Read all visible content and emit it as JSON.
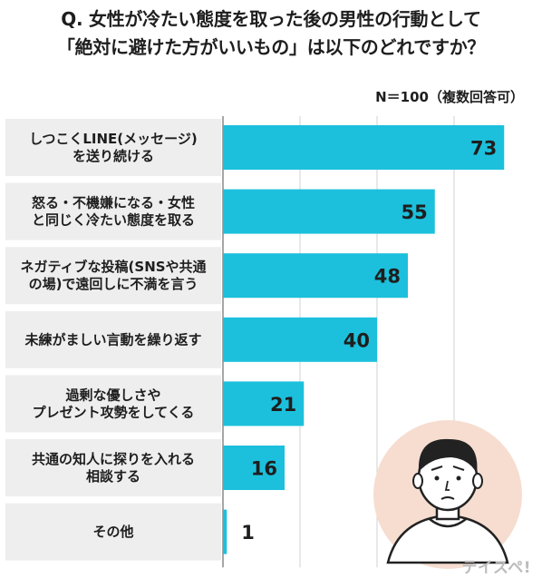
{
  "title_lines": [
    "Q. 女性が冷たい態度を取った後の男性の行動として",
    "「絶対に避けた方がいいもの」は以下のどれですか？"
  ],
  "note": "N＝100（複数回答可）",
  "watermark": "テイスペ!",
  "colors": {
    "bar": "#1cc0dc",
    "label_bg": "#eeeeee",
    "grid": "#d0d0d0"
  },
  "chart_data": {
    "type": "bar",
    "orientation": "horizontal",
    "categories": [
      [
        "しつこくLINE(メッセージ)",
        "を送り続ける"
      ],
      [
        "怒る・不機嫌になる・女性",
        "と同じく冷たい態度を取る"
      ],
      [
        "ネガティブな投稿(SNSや共通",
        "の場)で遠回しに不満を言う"
      ],
      [
        "未練がましい言動を繰り返す"
      ],
      [
        "過剰な優しさや",
        "プレゼント攻勢をしてくる"
      ],
      [
        "共通の知人に探りを入れる",
        "相談する"
      ],
      [
        "その他"
      ]
    ],
    "values": [
      73,
      55,
      48,
      40,
      21,
      16,
      1
    ],
    "xlim": [
      0,
      80
    ],
    "grid": true
  }
}
